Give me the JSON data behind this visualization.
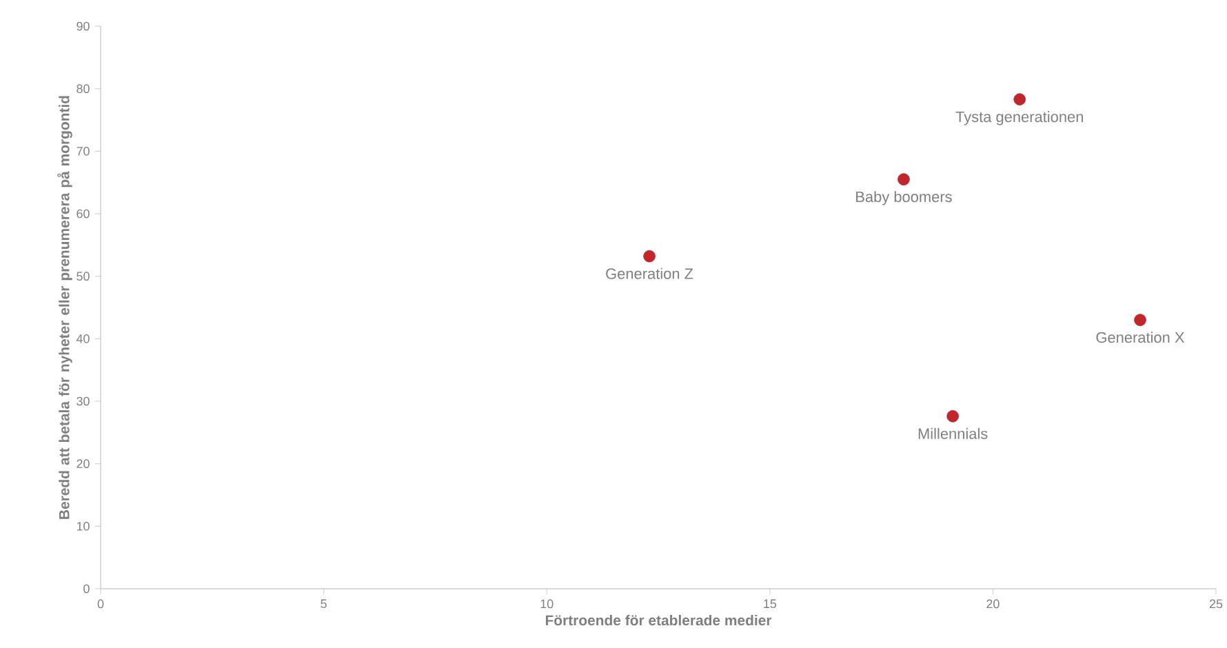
{
  "chart_data": {
    "type": "scatter",
    "xlabel": "Förtroende för etablerade medier",
    "ylabel": "Beredd att betala för nyheter eller prenumerera på morgontid",
    "xlim": [
      0,
      25
    ],
    "ylim": [
      0,
      90
    ],
    "xticks": [
      0,
      5,
      10,
      15,
      20,
      25
    ],
    "yticks": [
      0,
      10,
      20,
      30,
      40,
      50,
      60,
      70,
      80,
      90
    ],
    "grid": false,
    "marker": "circle",
    "series": [
      {
        "color": "#c0272d",
        "x": [
          12.3,
          18.0,
          20.6,
          23.3,
          19.1
        ],
        "values": [
          53.2,
          65.5,
          78.3,
          43.0,
          27.6
        ]
      }
    ],
    "annotations": [
      {
        "text": "Generation Z",
        "x": 12.3,
        "y": 53.2
      },
      {
        "text": "Baby boomers",
        "x": 18.0,
        "y": 65.5
      },
      {
        "text": "Tysta generationen",
        "x": 20.6,
        "y": 78.3
      },
      {
        "text": "Generation X",
        "x": 23.3,
        "y": 43.0
      },
      {
        "text": "Millennials",
        "x": 19.1,
        "y": 27.6
      }
    ]
  }
}
